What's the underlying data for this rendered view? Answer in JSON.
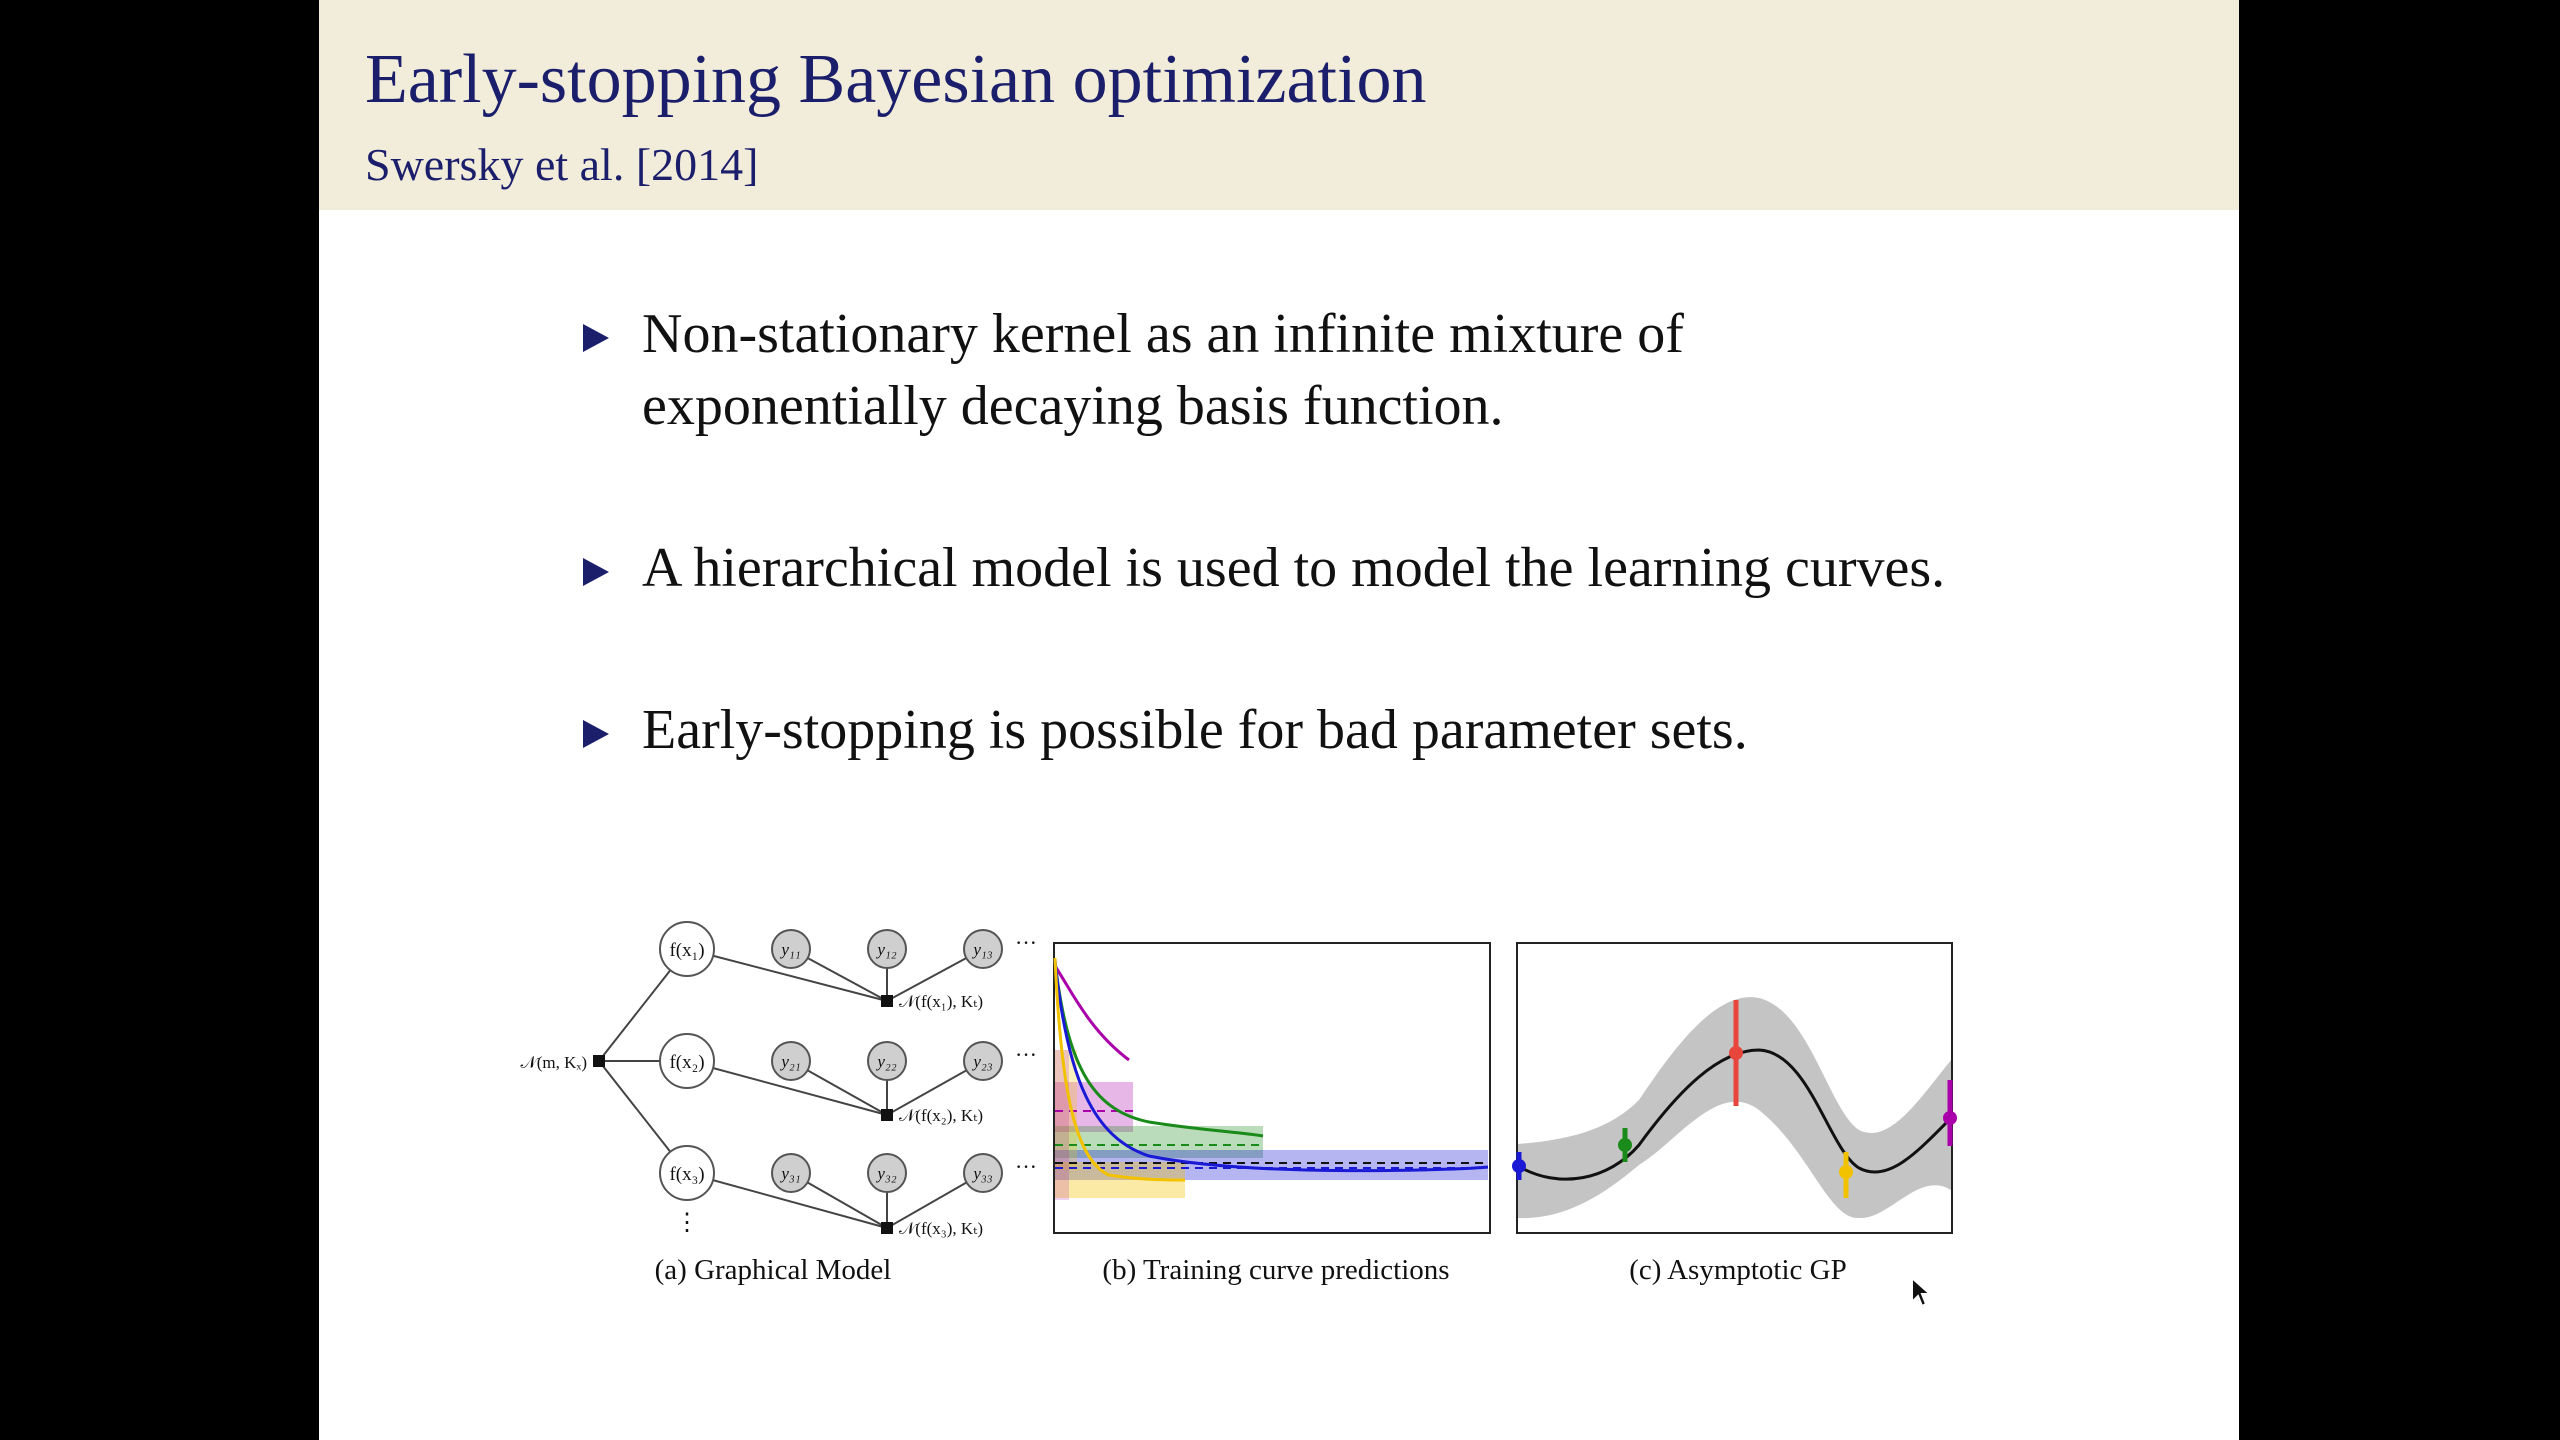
{
  "slide": {
    "title": "Early-stopping Bayesian optimization",
    "subtitle": "Swersky et al. [2014]",
    "bullets": [
      {
        "line1": "Non-stationary kernel as an infinite mixture of",
        "line2": "exponentially decaying basis function."
      },
      {
        "line1": "A hierarchical model is used to model the learning curves."
      },
      {
        "line1": "Early-stopping is possible for bad parameter sets."
      }
    ]
  },
  "figure": {
    "captions": {
      "a": "(a) Graphical Model",
      "b": "(b) Training curve predictions",
      "c": "(c) Asymptotic GP"
    },
    "graph": {
      "prior_label": "𝒩(m, Kₓ)",
      "f_nodes": [
        "f(x₁)",
        "f(x₂)",
        "f(x₃)"
      ],
      "y_nodes": [
        [
          "y₁₁",
          "y₁₂",
          "y₁₃"
        ],
        [
          "y₂₁",
          "y₂₂",
          "y₂₃"
        ],
        [
          "y₃₁",
          "y₃₂",
          "y₃₃"
        ]
      ],
      "factor_labels": [
        "𝒩(f(x₁), Kₜ)",
        "𝒩(f(x₂), Kₜ)",
        "𝒩(f(x₃), Kₜ)"
      ],
      "ellipsis_h": "···",
      "ellipsis_v": "⋮"
    },
    "colors": {
      "magenta": "#aa00aa",
      "green": "#1a8a1a",
      "blue": "#1a1ad6",
      "yellow": "#f2c200",
      "red": "#e8453c",
      "band_grey": "#c4c4c4"
    },
    "asymptotic_points": [
      {
        "color": "blue",
        "x": 0.0
      },
      {
        "color": "green",
        "x": 0.25
      },
      {
        "color": "red",
        "x": 0.5
      },
      {
        "color": "yellow",
        "x": 0.75
      },
      {
        "color": "magenta",
        "x": 1.0
      }
    ]
  },
  "cursor": {
    "icon": "arrow-cursor-icon"
  }
}
